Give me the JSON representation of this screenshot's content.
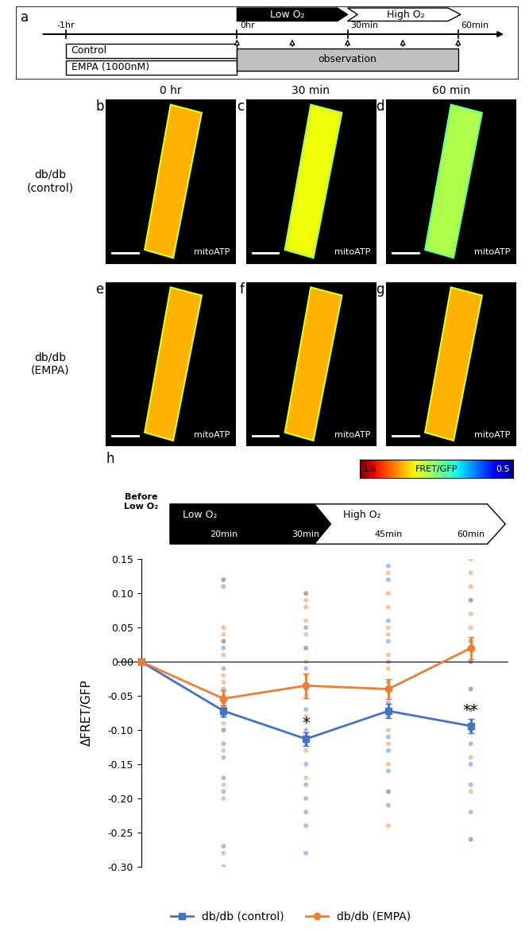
{
  "panel_a": {
    "label": "a",
    "timeline_ticks": [
      "-1hr",
      "0hr",
      "30min",
      "60min"
    ],
    "phases": [
      "Low O₂",
      "High O₂"
    ],
    "treatments": [
      "Control",
      "EMPA (1000nM)"
    ],
    "observation": "observation"
  },
  "images": {
    "columns": [
      "0 hr",
      "30 min",
      "60 min"
    ],
    "rows": [
      {
        "label": "db/db\n(control)",
        "panels": [
          "b",
          "c",
          "d"
        ]
      },
      {
        "label": "db/db\n(EMPA)",
        "panels": [
          "e",
          "f",
          "g"
        ]
      }
    ],
    "channel": "mitoATP",
    "colorbar": {
      "label": "FRET/GFP",
      "range": [
        0.5,
        1.6
      ],
      "ticks": [
        1.6,
        0.5
      ]
    }
  },
  "chart_data": {
    "type": "line",
    "panel_label": "h",
    "categories": [
      "Before\nLow O₂",
      "20min",
      "30min",
      "45min",
      "60min"
    ],
    "phases": [
      {
        "label": "Low O₂",
        "categories": [
          "20min",
          "30min"
        ]
      },
      {
        "label": "High O₂",
        "categories": [
          "45min",
          "60min"
        ]
      }
    ],
    "y_label": "ΔFRET/GFP",
    "ylim": [
      -0.3,
      0.15
    ],
    "yticks": [
      {
        "value": -0.3,
        "label": "-0.30"
      },
      {
        "value": -0.25,
        "label": "-0.25"
      },
      {
        "value": -0.2,
        "label": "-0.20"
      },
      {
        "value": -0.15,
        "label": "-0.15"
      },
      {
        "value": -0.1,
        "label": "-0.10"
      },
      {
        "value": -0.05,
        "label": "-0.05"
      },
      {
        "value": 0.0,
        "label": "0.00"
      },
      {
        "value": 0.05,
        "label": "0.05"
      },
      {
        "value": 0.1,
        "label": "0.10"
      },
      {
        "value": 0.15,
        "label": "0.15"
      }
    ],
    "tick_labels": "y",
    "legend": "lower center",
    "series": [
      {
        "name": "db/db (control)",
        "color": "#4472c4",
        "marker": "square",
        "values": [
          0.0,
          -0.072,
          -0.113,
          -0.072,
          -0.094
        ],
        "errors": [
          0.0,
          0.008,
          0.01,
          0.01,
          0.01
        ],
        "points": [
          [],
          [
            0.12,
            0.11,
            0.03,
            0.02,
            -0.01,
            -0.04,
            -0.06,
            -0.08,
            -0.1,
            -0.12,
            -0.14,
            -0.17,
            -0.19,
            -0.27,
            -0.3
          ],
          [
            0.1,
            0.05,
            0.02,
            -0.01,
            -0.04,
            -0.07,
            -0.1,
            -0.12,
            -0.15,
            -0.18,
            -0.2,
            -0.22,
            -0.24,
            -0.28
          ],
          [
            0.14,
            0.12,
            0.06,
            0.03,
            0.0,
            -0.03,
            -0.06,
            -0.08,
            -0.11,
            -0.13,
            -0.16,
            -0.19,
            -0.21
          ],
          [
            0.09,
            0.03,
            0.0,
            -0.04,
            -0.07,
            -0.1,
            -0.12,
            -0.15,
            -0.18,
            -0.22,
            -0.26
          ]
        ]
      },
      {
        "name": "db/db (EMPA)",
        "color": "#ed7d31",
        "marker": "circle",
        "values": [
          0.0,
          -0.054,
          -0.035,
          -0.04,
          0.02
        ],
        "errors": [
          0.0,
          0.012,
          0.018,
          0.014,
          0.016
        ],
        "points": [
          [],
          [
            0.12,
            0.05,
            0.04,
            0.03,
            0.01,
            -0.02,
            -0.03,
            -0.05,
            -0.07,
            -0.09,
            -0.1,
            -0.13,
            -0.18,
            -0.2,
            -0.28
          ],
          [
            0.1,
            0.09,
            0.08,
            0.06,
            0.04,
            0.02,
            0.0,
            -0.02,
            -0.05,
            -0.08,
            -0.11,
            -0.13,
            -0.17
          ],
          [
            0.13,
            0.1,
            0.08,
            0.05,
            0.04,
            0.01,
            -0.01,
            -0.04,
            -0.07,
            -0.1,
            -0.12,
            -0.15,
            -0.19,
            -0.24
          ],
          [
            0.15,
            0.13,
            0.11,
            0.09,
            0.07,
            0.05,
            0.03,
            0.0,
            -0.04,
            -0.07,
            -0.1,
            -0.14,
            -0.19,
            -0.26
          ]
        ]
      }
    ],
    "annotations": [
      {
        "text": "*",
        "category": "30min",
        "series": "db/db (control)"
      },
      {
        "text": "**",
        "category": "60min",
        "series": "db/db (control)"
      }
    ]
  }
}
